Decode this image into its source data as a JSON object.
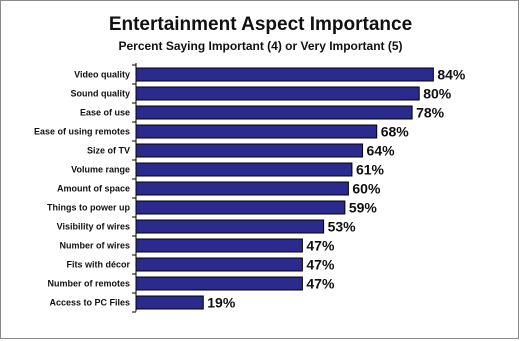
{
  "chart_data": {
    "type": "bar",
    "orientation": "horizontal",
    "title": "Entertainment Aspect Importance",
    "subtitle": "Percent Saying Important (4) or Very Important (5)",
    "categories": [
      "Video quality",
      "Sound quality",
      "Ease of use",
      "Ease of using remotes",
      "Size of TV",
      "Volume range",
      "Amount of space",
      "Things to power up",
      "Visibility of wires",
      "Number of wires",
      "Fits with décor",
      "Number of remotes",
      "Access to PC Files"
    ],
    "values": [
      84,
      80,
      78,
      68,
      64,
      61,
      60,
      59,
      53,
      47,
      47,
      47,
      19
    ],
    "value_labels": [
      "84%",
      "80%",
      "78%",
      "68%",
      "64%",
      "61%",
      "60%",
      "59%",
      "53%",
      "47%",
      "47%",
      "47%",
      "19%"
    ],
    "xlim": [
      0,
      100
    ],
    "grid": false,
    "legend": "none",
    "bar_color": "#2b2b8f",
    "bar_edge_color": "#000000"
  }
}
